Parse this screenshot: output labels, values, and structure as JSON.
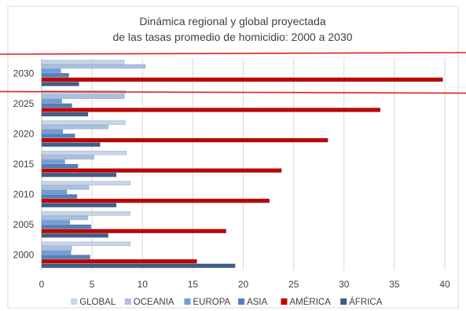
{
  "chart_data": {
    "type": "bar",
    "orientation": "horizontal",
    "title_lines": [
      "Dinámica regional y global proyectada",
      "de las tasas promedio de homicidio: 2000 a 2030"
    ],
    "categories": [
      "2000",
      "2005",
      "2010",
      "2015",
      "2020",
      "2025",
      "2030"
    ],
    "series": [
      {
        "name": "GLOBAL",
        "color": "#c5d5ec",
        "values": [
          8.8,
          8.8,
          8.8,
          8.4,
          8.3,
          8.3,
          8.2
        ]
      },
      {
        "name": "OCEANIA",
        "color": "#a9c0e2",
        "values": [
          3.0,
          4.6,
          4.7,
          5.2,
          6.6,
          8.2,
          10.3
        ]
      },
      {
        "name": "EUROPA",
        "color": "#6f9fdc",
        "values": [
          2.9,
          2.8,
          2.5,
          2.3,
          2.1,
          2.0,
          1.9
        ]
      },
      {
        "name": "ASIA",
        "color": "#4f81bd",
        "values": [
          4.8,
          4.9,
          3.5,
          3.6,
          3.3,
          3.0,
          2.7
        ]
      },
      {
        "name": "AMÉRICA",
        "color": "#c00000",
        "values": [
          15.4,
          18.3,
          22.6,
          23.8,
          28.4,
          33.6,
          39.8
        ]
      },
      {
        "name": "ÁFRICA",
        "color": "#3f5f8a",
        "values": [
          19.2,
          6.6,
          7.4,
          7.4,
          5.8,
          4.6,
          3.7
        ]
      }
    ],
    "xlim": [
      0,
      40
    ],
    "xticks": [
      "0",
      "5",
      "10",
      "15",
      "20",
      "25",
      "30",
      "35",
      "40"
    ],
    "grid": true,
    "legend_position": "bottom",
    "highlight_category": "2030"
  }
}
